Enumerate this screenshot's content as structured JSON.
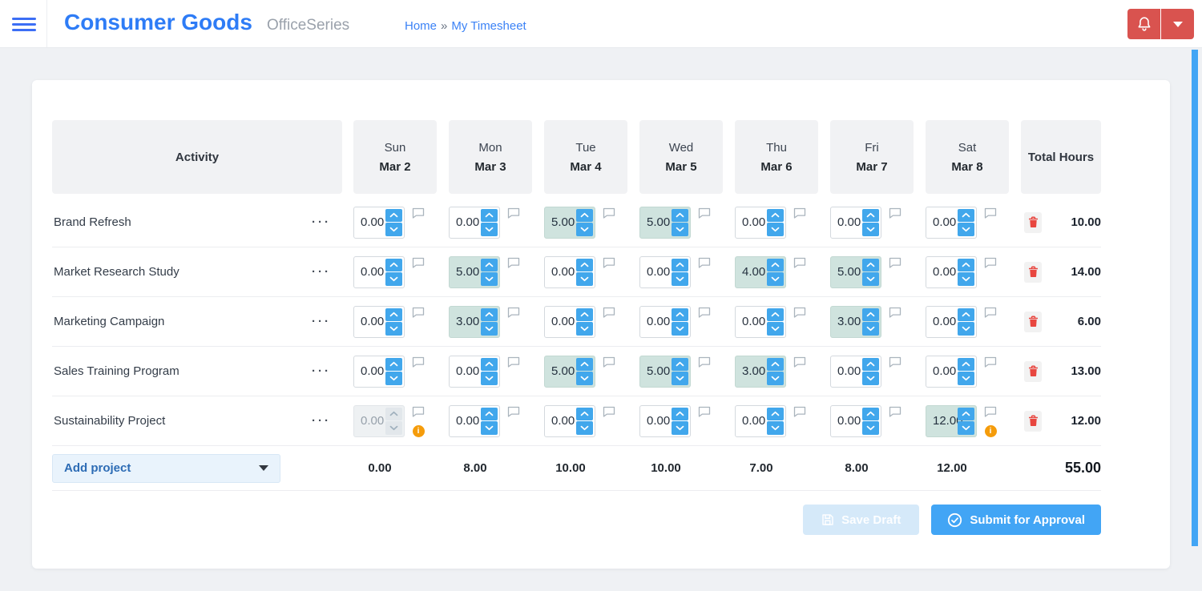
{
  "topbar": {
    "title": "Consumer Goods",
    "product": "OfficeSeries",
    "breadcrumb": {
      "home": "Home",
      "separator": "»",
      "current": "My Timesheet"
    }
  },
  "icons": {
    "ellipsis": "···",
    "warning_glyph": "i",
    "menu": "hamburger",
    "bell": "notification-bell",
    "caret": "caret-down",
    "comment": "speech-bubble",
    "trash": "trash-can",
    "save": "floppy-disk",
    "submit": "check-circle"
  },
  "colors": {
    "accent_blue": "#42a5f5",
    "brand_blue": "#2e7cf6",
    "danger_red": "#d9534f",
    "highlight_teal": "#cfe3de",
    "warning_orange": "#f59c0b",
    "trash_red": "#e8463f"
  },
  "timesheet": {
    "header": {
      "activity": "Activity",
      "total": "Total Hours"
    },
    "columns": [
      {
        "day": "Sun",
        "date": "Mar 2"
      },
      {
        "day": "Mon",
        "date": "Mar 3"
      },
      {
        "day": "Tue",
        "date": "Mar 4"
      },
      {
        "day": "Wed",
        "date": "Mar 5"
      },
      {
        "day": "Thu",
        "date": "Mar 6"
      },
      {
        "day": "Fri",
        "date": "Mar 7"
      },
      {
        "day": "Sat",
        "date": "Mar 8"
      }
    ],
    "rows": [
      {
        "activity": "Brand Refresh",
        "cells": [
          {
            "value": "0.00"
          },
          {
            "value": "0.00"
          },
          {
            "value": "5.00",
            "highlight": true
          },
          {
            "value": "5.00",
            "highlight": true
          },
          {
            "value": "0.00"
          },
          {
            "value": "0.00"
          },
          {
            "value": "0.00"
          }
        ],
        "total": "10.00"
      },
      {
        "activity": "Market Research Study",
        "cells": [
          {
            "value": "0.00"
          },
          {
            "value": "5.00",
            "highlight": true
          },
          {
            "value": "0.00"
          },
          {
            "value": "0.00"
          },
          {
            "value": "4.00",
            "highlight": true
          },
          {
            "value": "5.00",
            "highlight": true
          },
          {
            "value": "0.00"
          }
        ],
        "total": "14.00"
      },
      {
        "activity": "Marketing Campaign",
        "cells": [
          {
            "value": "0.00"
          },
          {
            "value": "3.00",
            "highlight": true
          },
          {
            "value": "0.00"
          },
          {
            "value": "0.00"
          },
          {
            "value": "0.00"
          },
          {
            "value": "3.00",
            "highlight": true
          },
          {
            "value": "0.00"
          }
        ],
        "total": "6.00"
      },
      {
        "activity": "Sales Training Program",
        "cells": [
          {
            "value": "0.00"
          },
          {
            "value": "0.00"
          },
          {
            "value": "5.00",
            "highlight": true
          },
          {
            "value": "5.00",
            "highlight": true
          },
          {
            "value": "3.00",
            "highlight": true
          },
          {
            "value": "0.00"
          },
          {
            "value": "0.00"
          }
        ],
        "total": "13.00"
      },
      {
        "activity": "Sustainability Project",
        "cells": [
          {
            "value": "0.00",
            "disabled": true,
            "warning": true
          },
          {
            "value": "0.00"
          },
          {
            "value": "0.00"
          },
          {
            "value": "0.00"
          },
          {
            "value": "0.00"
          },
          {
            "value": "0.00"
          },
          {
            "value": "12.00",
            "highlight": true,
            "warning": true
          }
        ],
        "total": "12.00"
      }
    ],
    "footer": {
      "add_project_label": "Add project",
      "day_totals": [
        "0.00",
        "8.00",
        "10.00",
        "10.00",
        "7.00",
        "8.00",
        "12.00"
      ],
      "grand_total": "55.00"
    },
    "actions": {
      "save_draft": "Save Draft",
      "submit": "Submit for Approval"
    }
  }
}
